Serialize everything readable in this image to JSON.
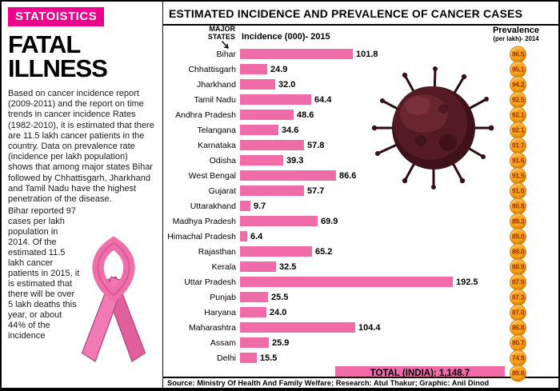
{
  "brand": {
    "label": "STATOISTICS"
  },
  "sidebar": {
    "title_line1": "FATAL",
    "title_line2": "ILLNESS",
    "body_part1": "Based on cancer incidence report (2009-2011) and the report on time trends in cancer incidence Rates (1982-2010), it is estimated that there are 11.5 lakh cancer patients in the country. Data on prevalence rate (incidence per lakh population) shows that among major states Bihar followed by Chhattisgarh, Jharkhand and Tamil Nadu have the highest penetration of the disease.",
    "body_part2": "Bihar reported 97 cases per lakh population in 2014. Of the estimated 11.5 lakh cancer patients in 2015, it is estimated that there will be over 5 lakh deaths this year, or about 44% of the incidence",
    "ribbon_icon": "pink-awareness-ribbon"
  },
  "chart": {
    "title": "ESTIMATED INCIDENCE AND PREVALENCE OF CANCER CASES",
    "states_header_line1": "MAJOR",
    "states_header_line2": "STATES",
    "incidence_header": "Incidence (000)- 2015",
    "prevalence_header": "Prevalence",
    "prevalence_subheader": "(per lakh)- 2014",
    "total_label": "TOTAL (INDIA): 1,148.7",
    "cell_icon": "cancer-cell-illustration"
  },
  "chart_data": {
    "type": "bar",
    "orientation": "horizontal",
    "title": "ESTIMATED INCIDENCE AND PREVALENCE OF CANCER CASES",
    "xlim": [
      0,
      200
    ],
    "grid": false,
    "legend_position": "none",
    "categories": [
      "Bihar",
      "Chhattisgarh",
      "Jharkhand",
      "Tamil Nadu",
      "Andhra Pradesh",
      "Telangana",
      "Karnataka",
      "Odisha",
      "West Bengal",
      "Gujarat",
      "Uttarakhand",
      "Madhya Pradesh",
      "Himachal Pradesh",
      "Rajasthan",
      "Kerala",
      "Uttar Pradesh",
      "Punjab",
      "Haryana",
      "Maharashtra",
      "Assam",
      "Delhi"
    ],
    "series": [
      {
        "name": "Incidence (000)- 2015",
        "values": [
          101.8,
          24.9,
          32.0,
          64.4,
          48.6,
          34.6,
          57.8,
          39.3,
          86.6,
          57.7,
          9.7,
          69.9,
          6.4,
          65.2,
          32.5,
          192.5,
          25.5,
          24.0,
          104.4,
          25.9,
          15.5
        ],
        "labels": [
          "101.8",
          "24.9",
          "32.0",
          "64.4",
          "48.6",
          "34.6",
          "57.8",
          "39.3",
          "86.6",
          "57.7",
          "9.7",
          "69.9",
          "6.4",
          "65.2",
          "32.5",
          "192.5",
          "25.5",
          "24.0",
          "104.4",
          "25.9",
          "15.5"
        ]
      },
      {
        "name": "Prevalence (per lakh)- 2014",
        "values": [
          96.5,
          95.1,
          94.2,
          92.5,
          92.1,
          92.1,
          91.7,
          91.6,
          91.5,
          91.0,
          90.8,
          89.3,
          89.0,
          89.0,
          88.9,
          87.9,
          87.3,
          87.0,
          86.8,
          80.7,
          74.8
        ],
        "labels": [
          "96.5",
          "95.1",
          "94.2",
          "92.5",
          "92.1",
          "92.1",
          "91.7",
          "91.6",
          "91.5",
          "91.0",
          "90.8",
          "89.3",
          "89.0",
          "89.0",
          "88.9",
          "87.9",
          "87.3",
          "87.0",
          "86.8",
          "80.7",
          "74.8"
        ]
      }
    ],
    "total": {
      "label": "TOTAL (INDIA)",
      "incidence": "1,148.7",
      "prevalence": "89.8"
    }
  },
  "footer": {
    "text": "Source: Ministry Of Health And Family Welfare; Research: Atul Thakur; Graphic: Anil Dinod"
  },
  "colors": {
    "brand_pink": "#EC008C",
    "bar_pink": "#F06CA8",
    "badge_orange": "#F9A31B",
    "badge_border": "#DD8400",
    "badge_text": "#9C2E00"
  }
}
